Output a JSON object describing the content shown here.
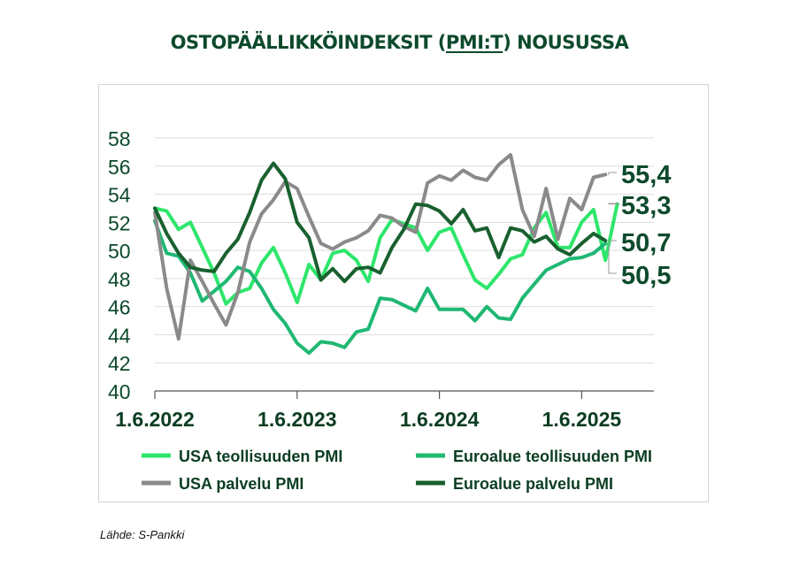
{
  "title_parts": {
    "before": "OSTOPÄÄLLIKKÖINDEKSIT (",
    "link": "PMI:T",
    "after": ") NOUSUSSA"
  },
  "source": "Lähde: S-Pankki",
  "colors": {
    "usa_manufacturing": "#2ee66b",
    "euro_manufacturing": "#1fb873",
    "usa_services": "#8a8a8a",
    "euro_services": "#19602f",
    "text_dark": "#0d4a2c",
    "grid": "#dddddd"
  },
  "chart_data": {
    "type": "line",
    "title": "OSTOPÄÄLLIKKÖINDEKSIT (PMI:T) NOUSUSSA",
    "x_start": "2022-06",
    "x_ticks": [
      "1.6.2022",
      "1.6.2023",
      "1.6.2024",
      "1.6.2025"
    ],
    "ylim": [
      40,
      58
    ],
    "y_ticks": [
      "40",
      "42",
      "44",
      "46",
      "48",
      "50",
      "52",
      "54",
      "56",
      "58"
    ],
    "grid": "horizontal",
    "legend_position": "bottom",
    "series": [
      {
        "name": "USA teollisuuden PMI",
        "color_key": "usa_manufacturing",
        "values": [
          53.0,
          52.8,
          51.5,
          52.0,
          50.2,
          48.4,
          46.2,
          47.0,
          47.3,
          49.1,
          50.2,
          48.4,
          46.3,
          49.0,
          47.9,
          49.8,
          50.0,
          49.3,
          47.8,
          50.9,
          52.2,
          51.9,
          51.6,
          50.0,
          51.3,
          51.6,
          49.7,
          47.9,
          47.3,
          48.3,
          49.4,
          49.7,
          51.6,
          52.7,
          50.2,
          50.2,
          52.0,
          52.9,
          49.3,
          53.3
        ],
        "end_label": "53,3"
      },
      {
        "name": "Euroalue teollisuuden PMI",
        "color_key": "euro_manufacturing",
        "values": [
          52.1,
          49.8,
          49.6,
          48.4,
          46.4,
          47.1,
          47.8,
          48.8,
          48.5,
          47.3,
          45.8,
          44.8,
          43.4,
          42.7,
          43.5,
          43.4,
          43.1,
          44.2,
          44.4,
          46.6,
          46.5,
          46.1,
          45.7,
          47.3,
          45.8,
          45.8,
          45.8,
          45.0,
          46.0,
          45.2,
          45.1,
          46.6,
          47.6,
          48.6,
          49.0,
          49.4,
          49.5,
          49.8,
          50.5
        ],
        "end_label": "50,5"
      },
      {
        "name": "USA palvelu PMI",
        "color_key": "usa_services",
        "values": [
          52.7,
          47.3,
          43.7,
          49.3,
          47.8,
          46.2,
          44.7,
          47.0,
          50.6,
          52.6,
          53.6,
          54.9,
          54.4,
          52.4,
          50.5,
          50.1,
          50.6,
          50.9,
          51.4,
          52.5,
          52.3,
          51.7,
          51.3,
          54.8,
          55.3,
          55.0,
          55.7,
          55.2,
          55.0,
          56.1,
          56.8,
          52.9,
          51.0,
          54.4,
          50.8,
          53.7,
          52.9,
          55.2,
          55.4
        ],
        "end_label": "55,4"
      },
      {
        "name": "Euroalue palvelu PMI",
        "color_key": "euro_services",
        "values": [
          53.0,
          51.2,
          49.8,
          48.8,
          48.6,
          48.5,
          49.8,
          50.8,
          52.7,
          55.0,
          56.2,
          55.1,
          52.0,
          50.9,
          47.9,
          48.7,
          47.8,
          48.7,
          48.8,
          48.4,
          50.2,
          51.5,
          53.3,
          53.2,
          52.8,
          51.9,
          52.9,
          51.4,
          51.6,
          49.5,
          51.6,
          51.4,
          50.6,
          51.0,
          50.1,
          49.7,
          50.5,
          51.2,
          50.7
        ],
        "end_label": "50,7"
      }
    ],
    "legend": [
      {
        "label": "USA teollisuuden PMI",
        "color_key": "usa_manufacturing"
      },
      {
        "label": "Euroalue teollisuuden PMI",
        "color_key": "euro_manufacturing"
      },
      {
        "label": "USA palvelu PMI",
        "color_key": "usa_services"
      },
      {
        "label": "Euroalue palvelu PMI",
        "color_key": "euro_services"
      }
    ]
  }
}
